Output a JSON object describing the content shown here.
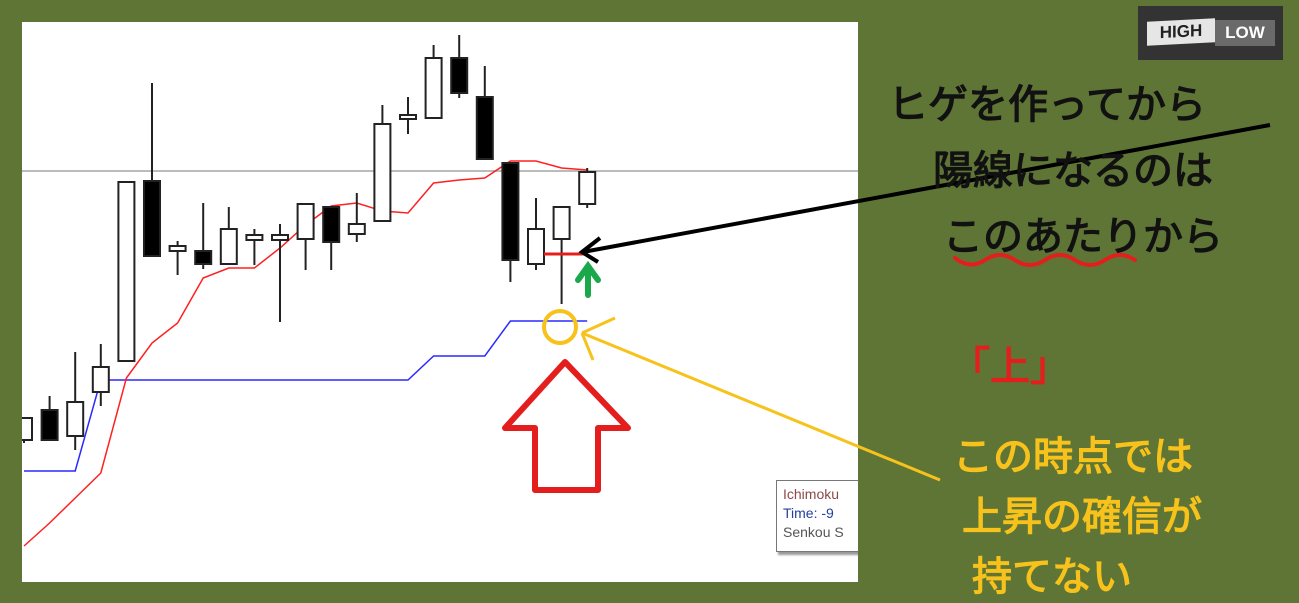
{
  "logo": {
    "high": "HIGH",
    "low": "LOW"
  },
  "tooltip": {
    "line1": "Ichimoku",
    "line2": "Time: -9",
    "line3": "Senkou S"
  },
  "annotations": {
    "line1": "ヒゲを作ってから",
    "line2": "陽線になるのは",
    "line3_underlined": "このあたり",
    "line3_rest": "から",
    "signal": "「上」",
    "note1": "この時点では",
    "note2": "上昇の確信が",
    "note3": "持てない"
  },
  "colors": {
    "background": "#5f7535",
    "tenkan": "#ff2020",
    "senkou": "#2a2aff",
    "note": "#f7c21b",
    "signal": "#e41d1d",
    "green_arrow": "#1aa84a"
  },
  "chart_data": {
    "type": "candlestick",
    "candles_ohlc": [
      [
        138,
        142,
        135,
        160
      ],
      [
        168,
        182,
        138,
        138
      ],
      [
        142,
        226,
        128,
        176
      ],
      [
        186,
        234,
        172,
        211
      ],
      [
        217,
        396,
        217,
        396
      ],
      [
        397,
        495,
        322,
        322
      ],
      [
        327,
        337,
        303,
        332
      ],
      [
        327,
        375,
        309,
        314
      ],
      [
        314,
        371,
        314,
        349
      ],
      [
        338,
        349,
        313,
        343
      ],
      [
        338,
        354,
        256,
        343
      ],
      [
        339,
        374,
        308,
        374
      ],
      [
        371,
        371,
        308,
        336
      ],
      [
        344,
        385,
        336,
        354
      ],
      [
        357,
        473,
        357,
        454
      ],
      [
        459,
        481,
        444,
        463
      ],
      [
        460,
        533,
        460,
        520
      ],
      [
        520,
        543,
        480,
        485
      ],
      [
        481,
        512,
        481,
        419
      ],
      [
        415,
        415,
        296,
        318
      ],
      [
        314,
        380,
        308,
        349
      ],
      [
        339,
        371,
        274,
        371
      ],
      [
        374,
        410,
        370,
        406
      ]
    ],
    "tenkan_line": [
      32,
      55,
      80,
      105,
      200,
      235,
      255,
      300,
      310,
      310,
      330,
      353,
      372,
      375,
      367,
      365,
      395,
      398,
      400,
      417,
      417,
      410,
      408
    ],
    "senkou_line": [
      107,
      107,
      107,
      198,
      198,
      198,
      198,
      198,
      198,
      198,
      198,
      198,
      198,
      198,
      198,
      198,
      222,
      222,
      222,
      257,
      257,
      257,
      257
    ],
    "reference_level": 407,
    "grid": false
  }
}
